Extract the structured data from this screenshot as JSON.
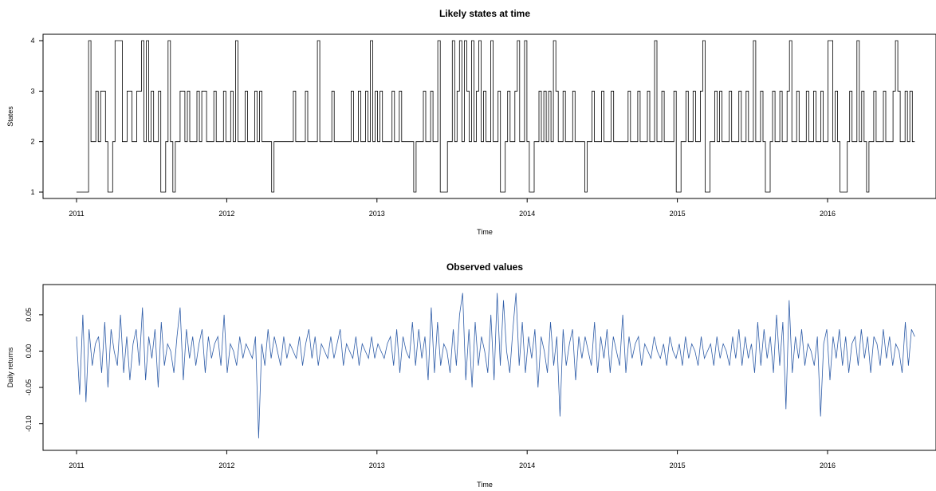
{
  "chart_data": [
    {
      "type": "line",
      "title": "Likely states at time",
      "xlabel": "Time",
      "ylabel": "States",
      "x_ticks": [
        "2011",
        "2012",
        "2013",
        "2014",
        "2015",
        "2016"
      ],
      "y_ticks": [
        "1",
        "2",
        "3",
        "4"
      ],
      "xlim": [
        2011.0,
        2016.7
      ],
      "ylim": [
        1,
        4
      ],
      "grid": false,
      "legend": "none",
      "series": [
        {
          "color": "#000000",
          "x_start": 2011.0,
          "x_end": 2016.58,
          "values": [
            1,
            1,
            1,
            1,
            1,
            4,
            2,
            2,
            3,
            2,
            3,
            3,
            2,
            1,
            1,
            2,
            4,
            4,
            4,
            2,
            2,
            3,
            3,
            2,
            2,
            3,
            3,
            4,
            2,
            4,
            2,
            3,
            2,
            2,
            3,
            1,
            1,
            2,
            4,
            2,
            1,
            2,
            2,
            3,
            3,
            2,
            3,
            2,
            2,
            2,
            3,
            2,
            3,
            3,
            2,
            2,
            2,
            3,
            2,
            2,
            2,
            3,
            2,
            2,
            3,
            2,
            4,
            2,
            2,
            2,
            3,
            2,
            2,
            2,
            3,
            2,
            3,
            2,
            2,
            2,
            2,
            1,
            2,
            2,
            2,
            2,
            2,
            2,
            2,
            2,
            3,
            2,
            2,
            2,
            2,
            3,
            2,
            2,
            2,
            2,
            4,
            2,
            2,
            2,
            2,
            2,
            3,
            2,
            2,
            2,
            2,
            2,
            2,
            2,
            3,
            2,
            2,
            3,
            2,
            2,
            3,
            2,
            4,
            2,
            3,
            2,
            3,
            2,
            2,
            2,
            2,
            3,
            2,
            2,
            3,
            2,
            2,
            2,
            2,
            2,
            1,
            2,
            2,
            2,
            3,
            2,
            2,
            3,
            2,
            2,
            4,
            1,
            1,
            1,
            2,
            2,
            4,
            2,
            3,
            4,
            2,
            4,
            3,
            2,
            4,
            2,
            3,
            4,
            2,
            3,
            2,
            2,
            4,
            2,
            2,
            3,
            1,
            1,
            2,
            3,
            2,
            2,
            3,
            4,
            2,
            2,
            4,
            2,
            1,
            1,
            2,
            2,
            3,
            2,
            3,
            2,
            3,
            2,
            4,
            3,
            2,
            2,
            3,
            2,
            2,
            2,
            3,
            2,
            2,
            2,
            2,
            1,
            2,
            2,
            3,
            2,
            2,
            2,
            3,
            2,
            2,
            2,
            3,
            2,
            2,
            2,
            2,
            2,
            2,
            3,
            2,
            2,
            2,
            3,
            2,
            2,
            2,
            3,
            2,
            2,
            4,
            2,
            2,
            3,
            2,
            2,
            2,
            2,
            3,
            1,
            1,
            2,
            2,
            3,
            2,
            2,
            3,
            2,
            2,
            3,
            4,
            1,
            1,
            2,
            2,
            3,
            2,
            3,
            2,
            2,
            2,
            3,
            2,
            2,
            2,
            3,
            2,
            2,
            3,
            2,
            2,
            4,
            2,
            2,
            3,
            2,
            1,
            1,
            2,
            3,
            2,
            2,
            3,
            2,
            2,
            3,
            4,
            2,
            2,
            3,
            2,
            2,
            2,
            3,
            2,
            2,
            3,
            2,
            2,
            3,
            2,
            2,
            4,
            4,
            2,
            3,
            2,
            1,
            1,
            1,
            2,
            3,
            2,
            2,
            4,
            2,
            3,
            2,
            1,
            2,
            2,
            3,
            2,
            2,
            2,
            3,
            2,
            2,
            2,
            3,
            4,
            3,
            2,
            2,
            3,
            2,
            3,
            2,
            2
          ]
        }
      ]
    },
    {
      "type": "line",
      "title": "Observed values",
      "xlabel": "Time",
      "ylabel": "Daily returns",
      "x_ticks": [
        "2011",
        "2012",
        "2013",
        "2014",
        "2015",
        "2016"
      ],
      "y_ticks": [
        "-0.10",
        "-0.05",
        "0.00",
        "0.05"
      ],
      "xlim": [
        2011.0,
        2016.7
      ],
      "ylim": [
        -0.13,
        0.085
      ],
      "grid": false,
      "legend": "none",
      "series": [
        {
          "color": "#2f5da8",
          "x_start": 2011.0,
          "x_end": 2016.58,
          "values": [
            0.02,
            -0.06,
            0.05,
            -0.07,
            0.03,
            -0.02,
            0.01,
            0.02,
            -0.03,
            0.04,
            -0.05,
            0.03,
            0.0,
            -0.02,
            0.05,
            -0.03,
            0.02,
            -0.04,
            0.01,
            0.03,
            -0.02,
            0.06,
            -0.04,
            0.02,
            -0.01,
            0.03,
            -0.05,
            0.04,
            -0.02,
            0.01,
            0.0,
            -0.03,
            0.02,
            0.06,
            -0.04,
            0.03,
            -0.01,
            0.02,
            -0.02,
            0.01,
            0.03,
            -0.03,
            0.02,
            -0.01,
            0.01,
            0.02,
            -0.02,
            0.05,
            -0.03,
            0.01,
            0.0,
            -0.02,
            0.02,
            -0.01,
            0.01,
            0.0,
            -0.01,
            0.02,
            -0.12,
            0.01,
            -0.02,
            0.03,
            -0.01,
            0.02,
            0.0,
            -0.02,
            0.02,
            -0.01,
            0.01,
            0.0,
            -0.01,
            0.02,
            -0.02,
            0.01,
            0.03,
            -0.01,
            0.02,
            -0.02,
            0.01,
            0.0,
            -0.01,
            0.02,
            -0.01,
            0.01,
            0.03,
            -0.02,
            0.01,
            0.0,
            -0.01,
            0.02,
            -0.02,
            0.01,
            0.0,
            -0.01,
            0.02,
            -0.01,
            0.01,
            0.0,
            -0.01,
            0.01,
            0.02,
            -0.02,
            0.03,
            -0.03,
            0.02,
            0.0,
            -0.01,
            0.04,
            -0.02,
            0.03,
            -0.01,
            0.02,
            -0.04,
            0.06,
            -0.03,
            0.04,
            -0.02,
            0.01,
            0.0,
            -0.03,
            0.03,
            -0.02,
            0.05,
            0.08,
            -0.04,
            0.03,
            -0.05,
            0.04,
            -0.02,
            0.02,
            0.0,
            -0.03,
            0.05,
            -0.04,
            0.08,
            -0.02,
            0.07,
            0.0,
            -0.03,
            0.03,
            0.08,
            -0.02,
            0.04,
            -0.03,
            0.02,
            -0.01,
            0.03,
            -0.05,
            0.02,
            0.0,
            -0.03,
            0.04,
            -0.02,
            0.02,
            -0.09,
            0.03,
            -0.02,
            0.01,
            0.03,
            -0.04,
            0.02,
            -0.01,
            0.02,
            0.0,
            -0.02,
            0.04,
            -0.03,
            0.02,
            -0.01,
            0.03,
            -0.03,
            0.02,
            0.0,
            -0.02,
            0.05,
            -0.03,
            0.02,
            -0.01,
            0.01,
            0.02,
            -0.02,
            0.01,
            0.0,
            -0.01,
            0.02,
            0.0,
            -0.01,
            0.01,
            -0.02,
            0.02,
            0.0,
            -0.01,
            0.01,
            -0.02,
            0.02,
            -0.01,
            0.01,
            0.0,
            -0.02,
            0.02,
            -0.01,
            0.0,
            0.01,
            -0.02,
            0.02,
            -0.01,
            0.01,
            0.0,
            -0.02,
            0.02,
            -0.01,
            0.03,
            -0.02,
            0.02,
            -0.01,
            0.01,
            -0.03,
            0.04,
            -0.02,
            0.03,
            -0.01,
            0.02,
            -0.03,
            0.05,
            -0.02,
            0.04,
            -0.08,
            0.07,
            -0.03,
            0.02,
            -0.01,
            0.03,
            -0.02,
            0.01,
            0.0,
            -0.02,
            0.02,
            -0.09,
            0.01,
            0.03,
            -0.04,
            0.02,
            -0.01,
            0.03,
            -0.02,
            0.02,
            -0.03,
            0.01,
            0.02,
            -0.02,
            0.03,
            -0.01,
            0.02,
            -0.03,
            0.02,
            0.01,
            -0.02,
            0.03,
            -0.01,
            0.02,
            -0.02,
            0.01,
            0.0,
            -0.03,
            0.04,
            -0.02,
            0.03,
            0.02
          ]
        }
      ]
    }
  ]
}
